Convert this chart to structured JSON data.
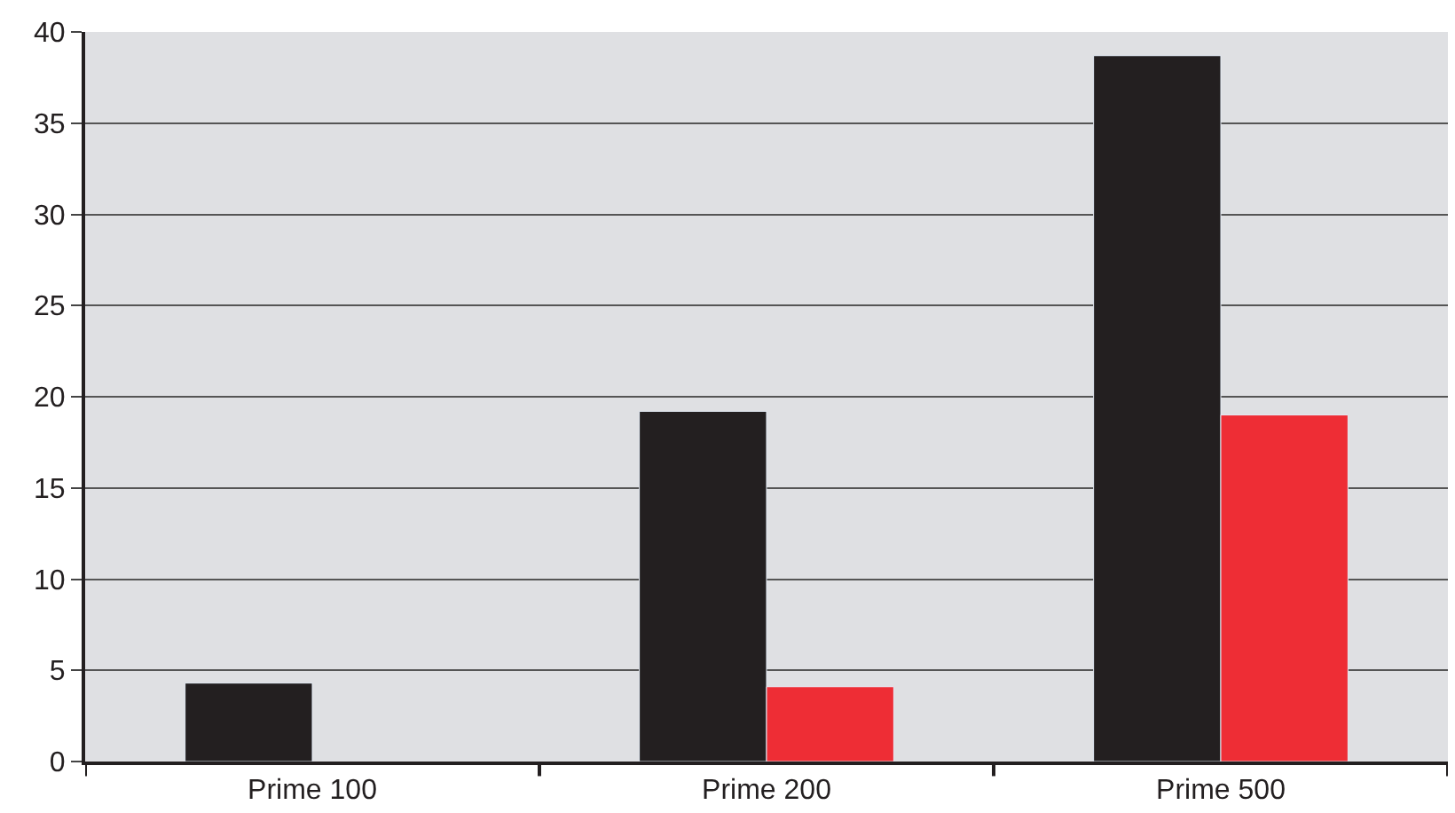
{
  "chart_data": {
    "type": "bar",
    "categories": [
      "Prime 100",
      "Prime 200",
      "Prime 500"
    ],
    "series": [
      {
        "color": "#231f20",
        "values": [
          4.3,
          19.2,
          38.7
        ]
      },
      {
        "color": "#ee2d35",
        "values": [
          null,
          4.1,
          19.0
        ]
      }
    ],
    "ylim": [
      0,
      40
    ],
    "yticks": [
      0,
      5,
      10,
      15,
      20,
      25,
      30,
      35,
      40
    ],
    "grid": "y"
  }
}
